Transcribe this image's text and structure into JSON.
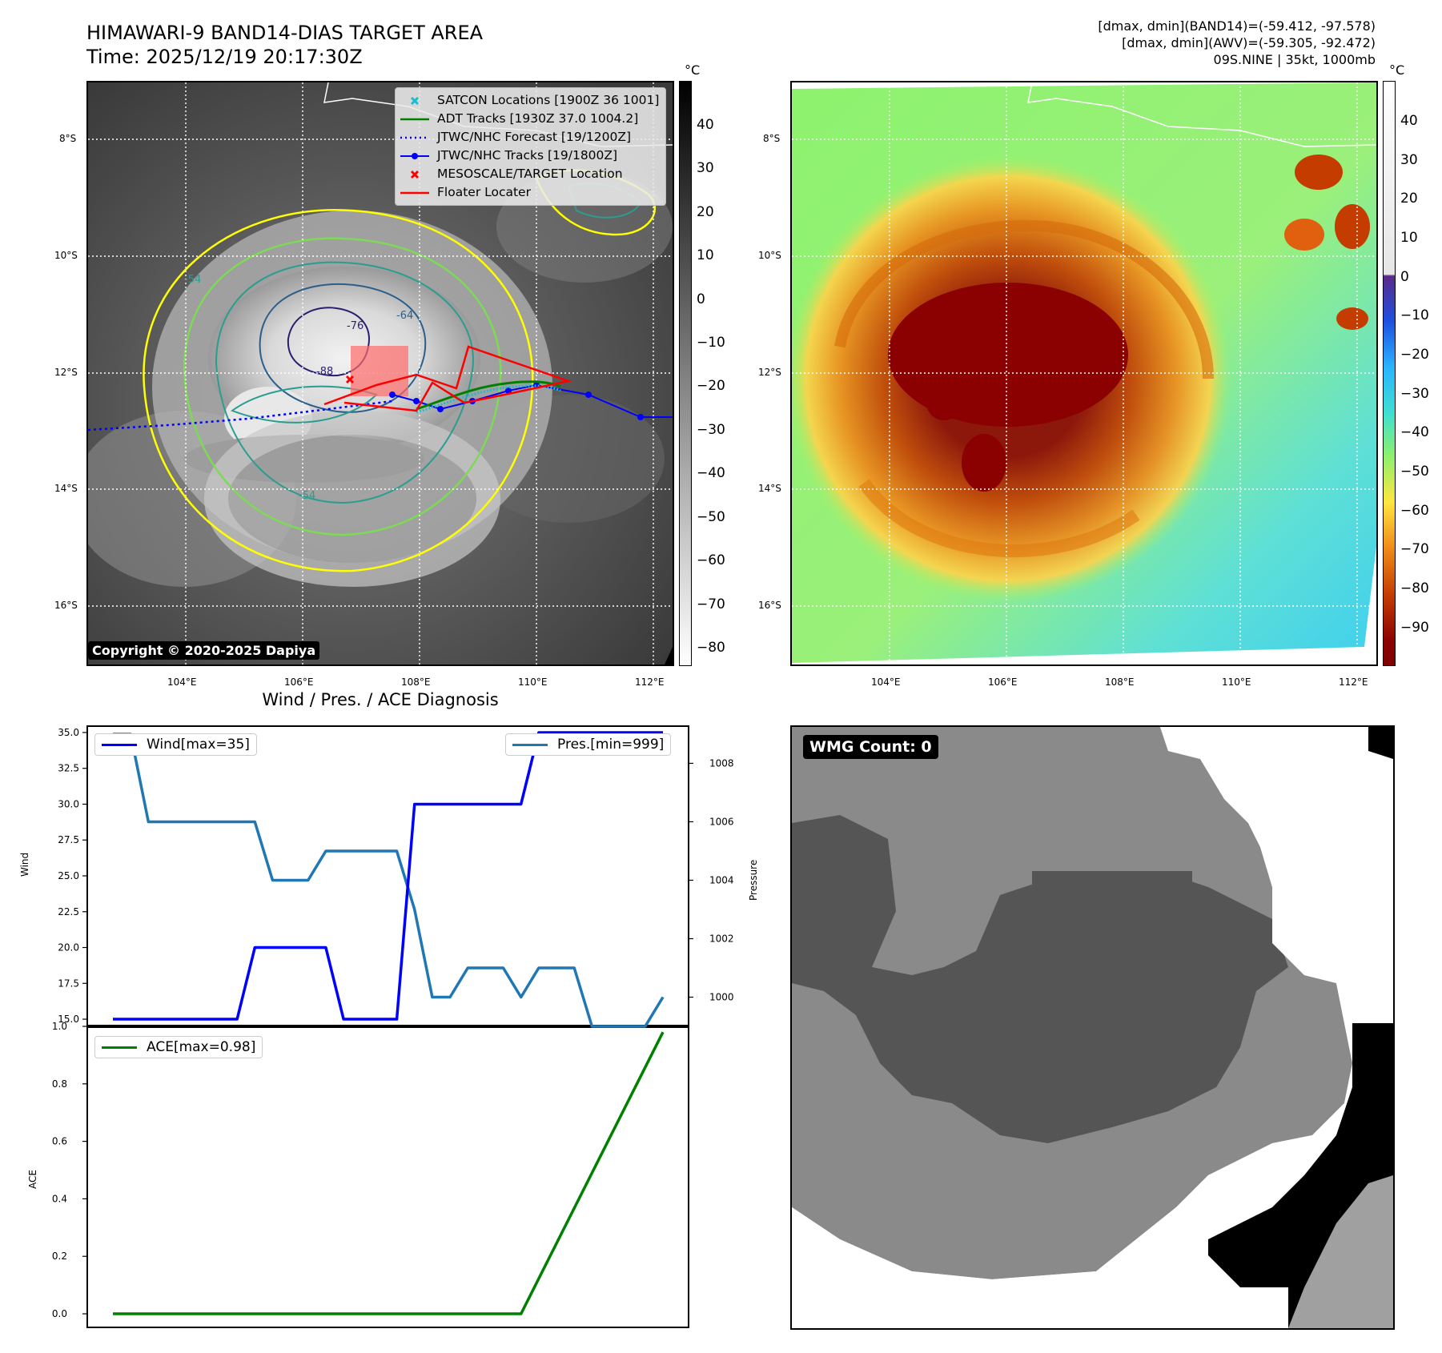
{
  "header": {
    "title_line1": "HIMAWARI-9 BAND14-DIAS TARGET AREA",
    "title_line2": "Time: 2025/12/19 20:17:30Z",
    "info_line1": "[dmax, dmin](BAND14)=(-59.412, -97.578)",
    "info_line2": "[dmax, dmin](AWV)=(-59.305, -92.472)",
    "info_line3": "09S.NINE | 35kt, 1000mb"
  },
  "map_axes": {
    "lat_labels": [
      "8°S",
      "10°S",
      "12°S",
      "14°S",
      "16°S"
    ],
    "lon_labels": [
      "104°E",
      "106°E",
      "108°E",
      "110°E",
      "112°E"
    ]
  },
  "ir_panel": {
    "copyright": "Copyright © 2020-2025 Dapiya",
    "contour_labels": [
      "-54",
      "-64",
      "-76",
      "-88",
      "-54"
    ],
    "legend": [
      {
        "label": "SATCON Locations [1900Z 36 1001]",
        "color": "#17becf",
        "marker": "x"
      },
      {
        "label": "ADT Tracks [1930Z 37.0 1004.2]",
        "color": "#008000",
        "marker": "line"
      },
      {
        "label": "JTWC/NHC Forecast [19/1200Z]",
        "color": "#0000ff",
        "marker": "dotted"
      },
      {
        "label": "JTWC/NHC Tracks [19/1800Z]",
        "color": "#0000ff",
        "marker": "line-dot"
      },
      {
        "label": "MESOSCALE/TARGET Location",
        "color": "#ff0000",
        "marker": "x"
      },
      {
        "label": "Floater Locater",
        "color": "#ff0000",
        "marker": "line"
      }
    ],
    "colorbar": {
      "unit": "°C",
      "ticks": [
        "40",
        "30",
        "20",
        "10",
        "0",
        "−10",
        "−20",
        "−30",
        "−40",
        "−50",
        "−60",
        "−70",
        "−80"
      ]
    }
  },
  "awv_panel": {
    "colorbar": {
      "unit": "°C",
      "ticks": [
        "40",
        "30",
        "20",
        "10",
        "0",
        "−10",
        "−20",
        "−30",
        "−40",
        "−50",
        "−60",
        "−70",
        "−80",
        "−90"
      ]
    }
  },
  "chart_data": [
    {
      "type": "line",
      "title": "Wind / Pres. / ACE Diagnosis",
      "ylabel": "Wind",
      "y2label": "Pressure",
      "ylim": [
        14.5,
        35.5
      ],
      "y2lim": [
        999,
        1009.3
      ],
      "yticks": [
        "35.0",
        "32.5",
        "30.0",
        "27.5",
        "25.0",
        "22.5",
        "20.0",
        "17.5",
        "15.0"
      ],
      "y2ticks": [
        "1008",
        "1006",
        "1004",
        "1002",
        "1000"
      ],
      "series": [
        {
          "name": "Wind[max=35]",
          "color": "#0000ff",
          "x": [
            0,
            7,
            8,
            12,
            13,
            16,
            17,
            23,
            24,
            31
          ],
          "values": [
            15,
            15,
            20,
            20,
            15,
            15,
            30,
            30,
            35,
            35
          ]
        },
        {
          "name": "Pres.[min=999]",
          "color": "#1f77b4",
          "x": [
            0,
            1,
            2,
            8,
            9,
            11,
            12,
            16,
            17,
            18,
            19,
            20,
            22,
            23,
            24,
            26,
            27,
            29,
            30,
            31
          ],
          "values": [
            1009,
            1009,
            1006,
            1006,
            1004,
            1004,
            1005,
            1005,
            1003,
            1000,
            1000,
            1001,
            1001,
            1000,
            1001,
            1001,
            999,
            999,
            999,
            1000
          ]
        }
      ]
    },
    {
      "type": "line",
      "ylabel": "ACE",
      "ylim": [
        -0.05,
        1.0
      ],
      "yticks": [
        "1.0",
        "0.8",
        "0.6",
        "0.4",
        "0.2",
        "0.0"
      ],
      "series": [
        {
          "name": "ACE[max=0.98]",
          "color": "#008000",
          "x": [
            0,
            23,
            31
          ],
          "values": [
            0,
            0,
            0.98
          ]
        }
      ]
    }
  ],
  "wmg_panel": {
    "badge": "WMG Count: 0"
  }
}
